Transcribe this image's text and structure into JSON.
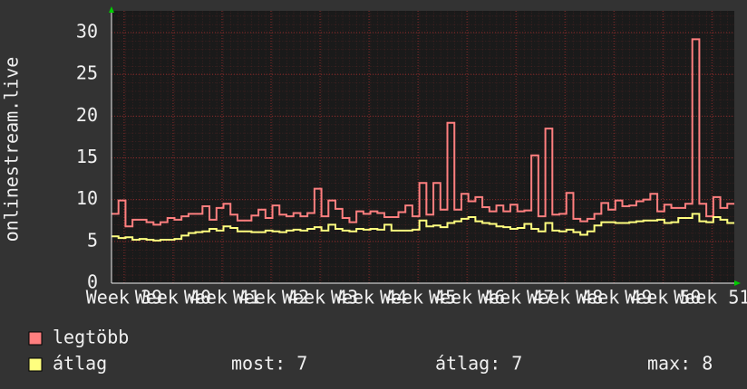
{
  "chart_data": {
    "type": "step",
    "ylabel": "onlinestream.live",
    "x": [
      0,
      1,
      2,
      3,
      4,
      5,
      6,
      7,
      8,
      9,
      10,
      11,
      12,
      13,
      14,
      15,
      16,
      17,
      18,
      19,
      20,
      21,
      22,
      23,
      24,
      25,
      26,
      27,
      28,
      29,
      30,
      31,
      32,
      33,
      34,
      35,
      36,
      37,
      38,
      39,
      40,
      41,
      42,
      43,
      44,
      45,
      46,
      47,
      48,
      49,
      50,
      51,
      52,
      53,
      54,
      55,
      56,
      57,
      58,
      59,
      60,
      61,
      62,
      63,
      64,
      65,
      66,
      67,
      68,
      69,
      70,
      71,
      72,
      73,
      74,
      75,
      76,
      77,
      78,
      79,
      80,
      81,
      82,
      83,
      84,
      85,
      86,
      87,
      88
    ],
    "series": [
      {
        "name": "legtöbb",
        "color": "#ff7f7f",
        "values": [
          8.3,
          9.9,
          6.8,
          7.6,
          7.6,
          7.3,
          7.0,
          7.3,
          7.8,
          7.6,
          8.0,
          8.3,
          8.3,
          9.2,
          7.6,
          9.0,
          9.5,
          8.2,
          7.5,
          7.5,
          8.1,
          8.8,
          7.8,
          9.3,
          8.2,
          8.0,
          8.4,
          8.0,
          8.4,
          11.3,
          8.0,
          9.9,
          8.9,
          7.8,
          7.3,
          8.6,
          8.3,
          8.6,
          8.4,
          7.9,
          7.9,
          8.5,
          9.3,
          8.0,
          12.0,
          8.2,
          12.0,
          8.8,
          19.2,
          8.8,
          10.7,
          9.8,
          10.3,
          9.1,
          8.6,
          9.3,
          8.6,
          9.4,
          8.6,
          8.7,
          15.3,
          8.0,
          18.5,
          8.2,
          8.3,
          10.8,
          7.7,
          7.4,
          7.7,
          8.3,
          9.6,
          8.8,
          9.9,
          9.2,
          9.3,
          9.8,
          10.0,
          10.7,
          8.6,
          9.4,
          9.0,
          9.0,
          9.5,
          29.2,
          9.5,
          8.0,
          10.3,
          9.0,
          9.5
        ]
      },
      {
        "name": "átlag",
        "color": "#ffff7f",
        "values": [
          5.6,
          5.4,
          5.5,
          5.2,
          5.3,
          5.2,
          5.1,
          5.2,
          5.2,
          5.3,
          5.7,
          6.0,
          6.1,
          6.2,
          6.5,
          6.3,
          6.8,
          6.6,
          6.2,
          6.2,
          6.1,
          6.1,
          6.3,
          6.2,
          6.1,
          6.3,
          6.4,
          6.3,
          6.5,
          6.7,
          6.3,
          7.0,
          6.5,
          6.3,
          6.2,
          6.5,
          6.4,
          6.5,
          6.4,
          7.0,
          6.3,
          6.3,
          6.3,
          6.4,
          7.5,
          6.8,
          6.9,
          6.7,
          7.2,
          7.4,
          7.7,
          7.9,
          7.4,
          7.2,
          7.1,
          6.8,
          6.7,
          6.5,
          6.6,
          7.1,
          6.5,
          6.2,
          7.2,
          6.3,
          6.2,
          6.4,
          6.1,
          5.8,
          6.2,
          6.9,
          7.3,
          7.3,
          7.2,
          7.2,
          7.3,
          7.4,
          7.5,
          7.5,
          7.6,
          7.2,
          7.3,
          7.8,
          7.8,
          8.3,
          7.4,
          7.3,
          7.9,
          7.6,
          7.2
        ]
      }
    ],
    "xlim": [
      0,
      89
    ],
    "xticks": [
      {
        "value": 1.8,
        "label": "Week 39"
      },
      {
        "value": 8.8,
        "label": "Week 40"
      },
      {
        "value": 15.8,
        "label": "Week 41"
      },
      {
        "value": 22.8,
        "label": "Week 42"
      },
      {
        "value": 29.8,
        "label": "Week 43"
      },
      {
        "value": 36.8,
        "label": "Week 44"
      },
      {
        "value": 43.8,
        "label": "Week 45"
      },
      {
        "value": 50.8,
        "label": "Week 46"
      },
      {
        "value": 57.8,
        "label": "Week 47"
      },
      {
        "value": 64.8,
        "label": "Week 48"
      },
      {
        "value": 71.8,
        "label": "Week 49"
      },
      {
        "value": 78.8,
        "label": "Week 50"
      },
      {
        "value": 85.8,
        "label": "Week 51"
      }
    ],
    "ylim": [
      0,
      32.6
    ],
    "yticks": [
      0,
      5,
      10,
      15,
      20,
      25,
      30
    ],
    "grid": true,
    "stats": [
      "most: 7",
      "átlag: 7",
      "max: 8"
    ]
  }
}
